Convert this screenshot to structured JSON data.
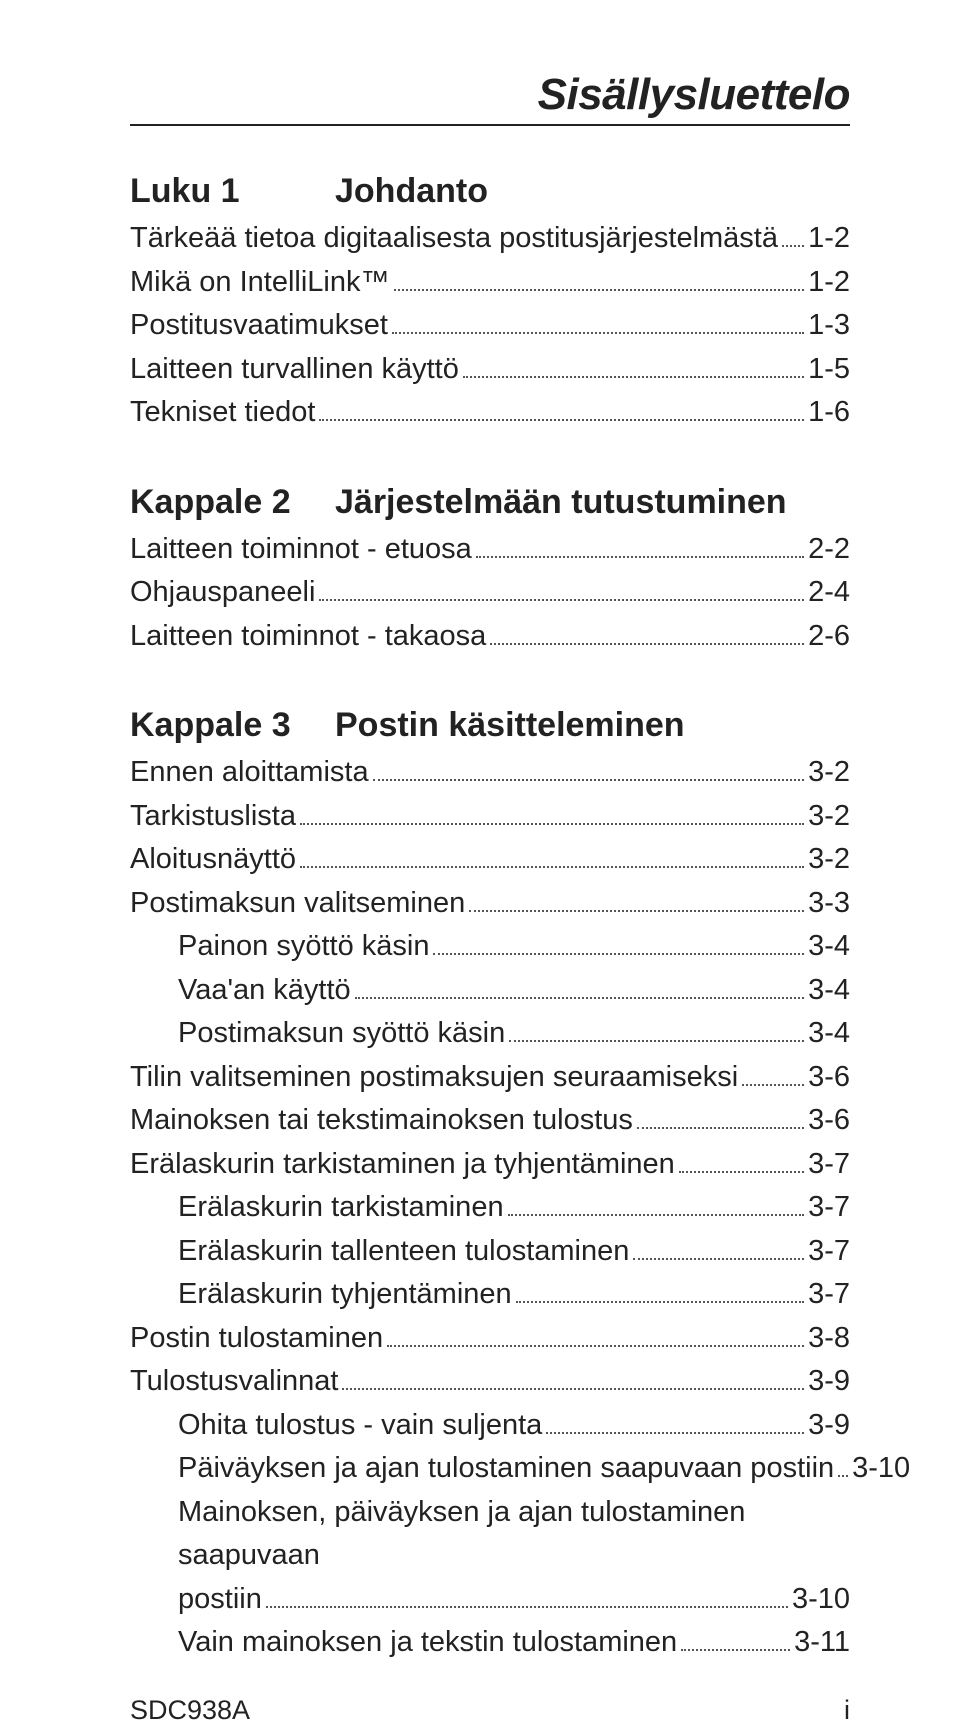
{
  "page": {
    "title": "Sisällysluettelo",
    "footer_left": "SDC938A",
    "footer_right": "i"
  },
  "sections": [
    {
      "heading_num": "Luku 1",
      "heading_title": "Johdanto",
      "entries": [
        {
          "label": "Tärkeää tietoa digitaalisesta postitusjärjestelmästä",
          "page": "1-2",
          "indent": 0
        },
        {
          "label": "Mikä on IntelliLink™",
          "page": "1-2",
          "indent": 0
        },
        {
          "label": "Postitusvaatimukset",
          "page": "1-3",
          "indent": 0
        },
        {
          "label": "Laitteen turvallinen käyttö",
          "page": "1-5",
          "indent": 0
        },
        {
          "label": "Tekniset tiedot",
          "page": "1-6",
          "indent": 0
        }
      ]
    },
    {
      "heading_num": "Kappale 2",
      "heading_title": "Järjestelmään tutustuminen",
      "entries": [
        {
          "label": "Laitteen toiminnot - etuosa",
          "page": "2-2",
          "indent": 0
        },
        {
          "label": "Ohjauspaneeli",
          "page": "2-4",
          "indent": 0
        },
        {
          "label": "Laitteen toiminnot - takaosa",
          "page": "2-6",
          "indent": 0
        }
      ]
    },
    {
      "heading_num": "Kappale 3",
      "heading_title": "Postin käsitteleminen",
      "entries": [
        {
          "label": "Ennen aloittamista",
          "page": "3-2",
          "indent": 0
        },
        {
          "label": "Tarkistuslista",
          "page": "3-2",
          "indent": 0
        },
        {
          "label": "Aloitusnäyttö",
          "page": "3-2",
          "indent": 0
        },
        {
          "label": "Postimaksun valitseminen",
          "page": "3-3",
          "indent": 0
        },
        {
          "label": "Painon syöttö käsin",
          "page": "3-4",
          "indent": 1
        },
        {
          "label": "Vaa'an käyttö",
          "page": "3-4",
          "indent": 1
        },
        {
          "label": "Postimaksun syöttö käsin",
          "page": "3-4",
          "indent": 1
        },
        {
          "label": "Tilin valitseminen postimaksujen seuraamiseksi",
          "page": "3-6",
          "indent": 0
        },
        {
          "label": "Mainoksen tai tekstimainoksen tulostus",
          "page": "3-6",
          "indent": 0
        },
        {
          "label": "Erälaskurin tarkistaminen ja tyhjentäminen",
          "page": "3-7",
          "indent": 0
        },
        {
          "label": "Erälaskurin tarkistaminen",
          "page": "3-7",
          "indent": 1
        },
        {
          "label": "Erälaskurin tallenteen tulostaminen",
          "page": "3-7",
          "indent": 1
        },
        {
          "label": "Erälaskurin tyhjentäminen",
          "page": "3-7",
          "indent": 1
        },
        {
          "label": "Postin tulostaminen",
          "page": "3-8",
          "indent": 0
        },
        {
          "label": "Tulostusvalinnat",
          "page": "3-9",
          "indent": 0
        },
        {
          "label": "Ohita tulostus - vain suljenta",
          "page": "3-9",
          "indent": 1
        },
        {
          "label": "Päiväyksen ja ajan tulostaminen saapuvaan postiin",
          "page": "3-10",
          "indent": 1
        },
        {
          "pre": "Mainoksen, päiväyksen ja ajan tulostaminen saapuvaan",
          "label": "postiin",
          "page": "3-10",
          "indent": 1,
          "wrap": true
        },
        {
          "label": "Vain mainoksen ja tekstin tulostaminen",
          "page": "3-11",
          "indent": 1
        }
      ]
    }
  ]
}
